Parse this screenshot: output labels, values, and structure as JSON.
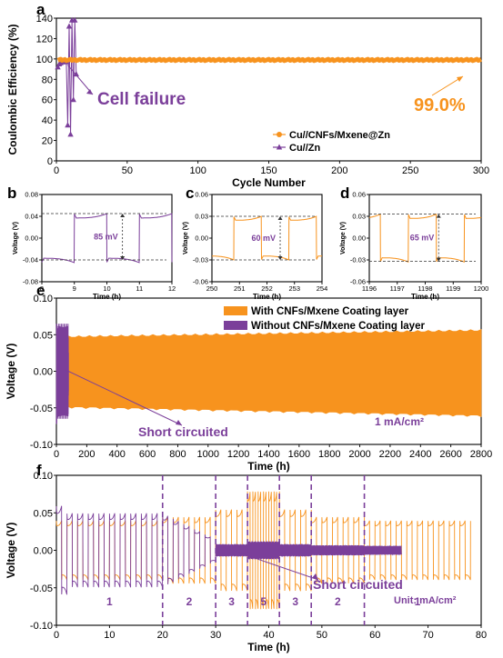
{
  "colors": {
    "orange": "#F7931E",
    "purple": "#7B3F9A"
  },
  "chart_data": [
    {
      "id": "a",
      "type": "scatter",
      "panel_label": "a",
      "xlabel": "Cycle Number",
      "ylabel": "Coulombic Efficiency (%)",
      "xlim": [
        0,
        300
      ],
      "ylim": [
        0,
        140
      ],
      "xticks": [
        0,
        50,
        100,
        150,
        200,
        250,
        300
      ],
      "yticks": [
        0,
        20,
        40,
        60,
        80,
        100,
        120,
        140
      ],
      "series": [
        {
          "name": "Cu//CNFs/Mxene@Zn",
          "color": "#F7931E",
          "marker": "circle",
          "x_range": [
            1,
            300
          ],
          "value": 99.0
        },
        {
          "name": "Cu//Zn",
          "color": "#7B3F9A",
          "marker": "triangle",
          "x": [
            1,
            2,
            3,
            4,
            5,
            6,
            7,
            8,
            9,
            10,
            11,
            12,
            13,
            14
          ],
          "y": [
            92,
            95,
            96,
            97,
            98,
            99,
            97,
            35,
            132,
            26,
            138,
            60,
            138,
            85
          ]
        }
      ],
      "annotations": [
        {
          "text": "Cell failure",
          "color": "#7B3F9A"
        },
        {
          "text": "99.0%",
          "color": "#F7931E"
        }
      ]
    },
    {
      "id": "b",
      "type": "line",
      "panel_label": "b",
      "xlabel": "Time (h)",
      "ylabel": "Voltage (V)",
      "xlim": [
        8,
        12
      ],
      "ylim": [
        -0.08,
        0.08
      ],
      "xticks": [
        8,
        9,
        10,
        11,
        12
      ],
      "yticks": [
        -0.08,
        -0.04,
        0.0,
        0.04,
        0.08
      ],
      "series": [
        {
          "color": "#7B3F9A",
          "period": 2,
          "start": 7,
          "amplitude": 0.045
        }
      ],
      "annotation": {
        "text": "85 mV",
        "upper": 0.045,
        "lower": -0.04
      }
    },
    {
      "id": "c",
      "type": "line",
      "panel_label": "c",
      "xlabel": "Time (h)",
      "ylabel": "Voltage (V)",
      "xlim": [
        250,
        254
      ],
      "ylim": [
        -0.06,
        0.06
      ],
      "xticks": [
        250,
        251,
        252,
        253,
        254
      ],
      "yticks": [
        -0.06,
        -0.03,
        0.0,
        0.03,
        0.06
      ],
      "series": [
        {
          "color": "#F7931E",
          "period": 2,
          "start": 248.8,
          "amplitude": 0.03
        }
      ],
      "annotation": {
        "text": "60 mV",
        "upper": 0.03,
        "lower": -0.03
      }
    },
    {
      "id": "d",
      "type": "line",
      "panel_label": "d",
      "xlabel": "Time (h)",
      "ylabel": "Voltage (V)",
      "xlim": [
        1196,
        1200
      ],
      "ylim": [
        -0.06,
        0.06
      ],
      "xticks": [
        1196,
        1197,
        1198,
        1199,
        1200
      ],
      "yticks": [
        -0.06,
        -0.03,
        0.0,
        0.03,
        0.06
      ],
      "series": [
        {
          "color": "#F7931E",
          "period": 2,
          "start": 1195.4,
          "amplitude": 0.033
        }
      ],
      "annotation": {
        "text": "65 mV",
        "upper": 0.033,
        "lower": -0.032
      }
    },
    {
      "id": "e",
      "type": "line",
      "panel_label": "e",
      "xlabel": "Time (h)",
      "ylabel": "Voltage (V)",
      "xlim": [
        0,
        2800
      ],
      "ylim": [
        -0.1,
        0.1
      ],
      "xticks": [
        0,
        200,
        400,
        600,
        800,
        1000,
        1200,
        1400,
        1600,
        1800,
        2000,
        2200,
        2400,
        2600,
        2800
      ],
      "yticks": [
        -0.1,
        -0.05,
        0.0,
        0.05,
        0.1
      ],
      "series": [
        {
          "name": "With CNFs/Mxene Coating layer",
          "color": "#F7931E",
          "x_end": 2800,
          "envelope_start": 0.046,
          "envelope_end": 0.055,
          "lower_start": -0.048,
          "lower_end": -0.06
        },
        {
          "name": "Without CNFs/Mxene Coating layer",
          "color": "#7B3F9A",
          "x_end": 80,
          "max": 0.065,
          "min": -0.072
        }
      ],
      "annotations": [
        {
          "text": "Short circuited",
          "color": "#7B3F9A"
        },
        {
          "text": "1 mA/cm²",
          "color": "#7B3F9A"
        }
      ]
    },
    {
      "id": "f",
      "type": "line",
      "panel_label": "f",
      "xlabel": "Time (h)",
      "ylabel": "Voltage (V)",
      "xlim": [
        0,
        80
      ],
      "ylim": [
        -0.1,
        0.1
      ],
      "xticks": [
        0,
        10,
        20,
        30,
        40,
        50,
        60,
        70,
        80
      ],
      "yticks": [
        -0.1,
        -0.05,
        0.0,
        0.05,
        0.1
      ],
      "segment_boundaries": [
        20,
        30,
        36,
        42,
        48,
        58
      ],
      "segments": [
        {
          "start": 0,
          "end": 20,
          "rate": "1",
          "amp": 0.04
        },
        {
          "start": 20,
          "end": 30,
          "rate": "2",
          "amp": 0.045
        },
        {
          "start": 30,
          "end": 36,
          "rate": "3",
          "amp": 0.055
        },
        {
          "start": 36,
          "end": 42,
          "rate": "5",
          "amp": 0.08
        },
        {
          "start": 42,
          "end": 48,
          "rate": "3",
          "amp": 0.055
        },
        {
          "start": 48,
          "end": 58,
          "rate": "2",
          "amp": 0.045
        },
        {
          "start": 58,
          "end": 78,
          "rate": "1",
          "amp": 0.04
        }
      ],
      "series": [
        {
          "color": "#F7931E",
          "x_end": 78
        },
        {
          "color": "#7B3F9A",
          "x_end": 65,
          "short_at": 30
        }
      ],
      "annotations": [
        {
          "text": "Short circuited",
          "color": "#7B3F9A"
        },
        {
          "text": "Unit: mA/cm²",
          "color": "#7B3F9A"
        }
      ]
    }
  ]
}
